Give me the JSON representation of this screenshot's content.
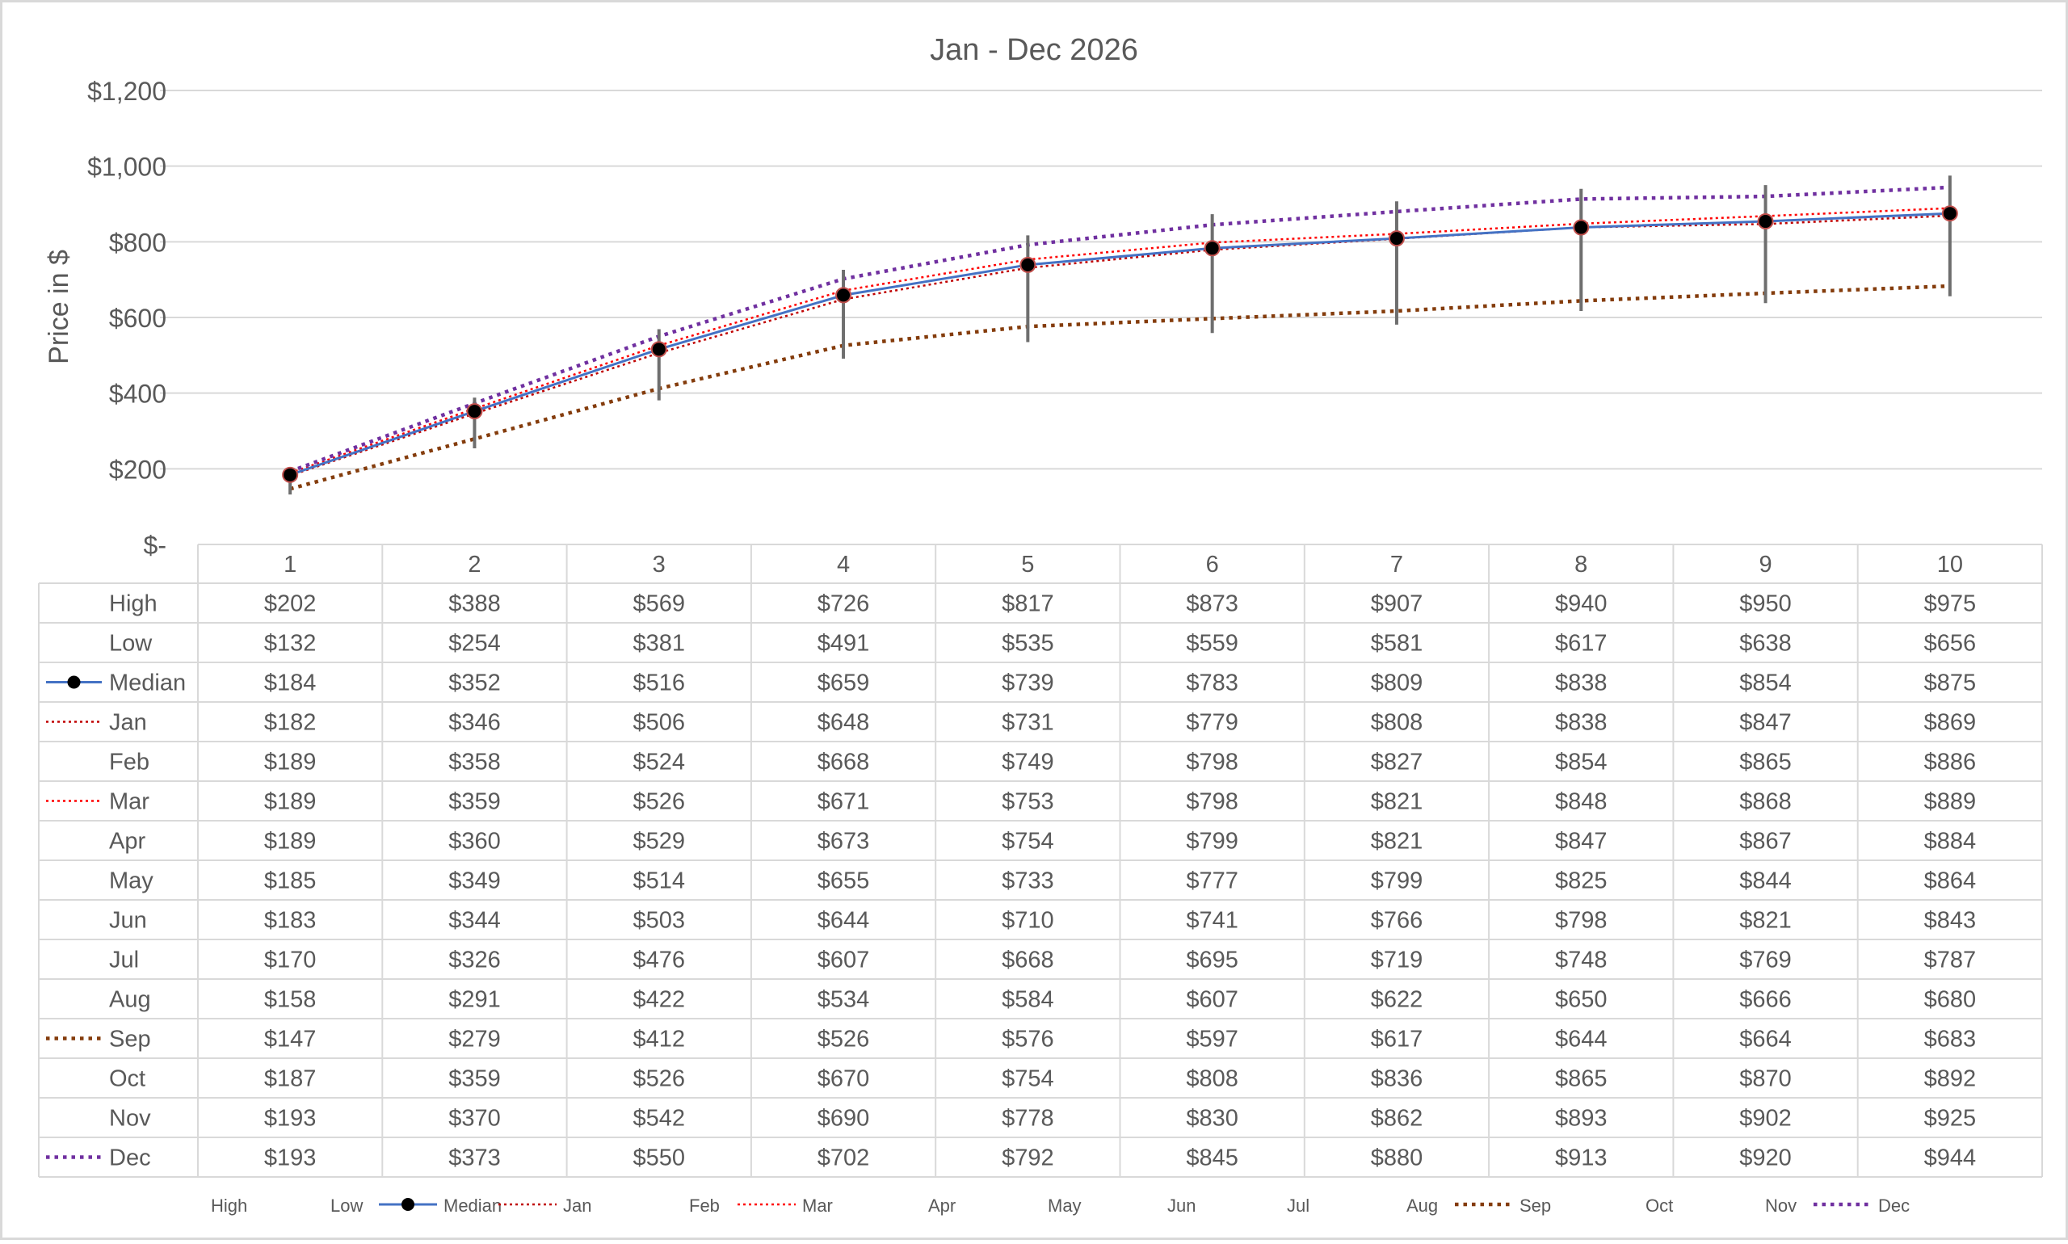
{
  "chart_data": {
    "type": "line",
    "title": "Jan - Dec 2026",
    "ylabel": "Price in $",
    "xlabel": "",
    "ylim": [
      0,
      1200
    ],
    "yticks": [
      0,
      200,
      400,
      600,
      800,
      1000,
      1200
    ],
    "ytick_labels": [
      "$-",
      "$200",
      "$400",
      "$600",
      "$800",
      "$1,000",
      "$1,200"
    ],
    "categories": [
      "1",
      "2",
      "3",
      "4",
      "5",
      "6",
      "7",
      "8",
      "9",
      "10"
    ],
    "grid": "horizontal",
    "legend_position": "bottom",
    "data_table": true,
    "colors": {
      "median": "#4472C4",
      "marker": "#000000",
      "marker_edge": "#C0504D",
      "jan": "#C00000",
      "mar": "#FF0000",
      "sep": "#843C0C",
      "dec": "#7030A0",
      "error_bar": "#6E6E6E",
      "grid": "#D9D9D9",
      "text": "#595959"
    },
    "series": [
      {
        "name": "High",
        "style": "none",
        "values": [
          202,
          388,
          569,
          726,
          817,
          873,
          907,
          940,
          950,
          975
        ],
        "labels": [
          "$202",
          "$388",
          "$569",
          "$726",
          "$817",
          "$873",
          "$907",
          "$940",
          "$950",
          "$975"
        ]
      },
      {
        "name": "Low",
        "style": "none",
        "values": [
          132,
          254,
          381,
          491,
          535,
          559,
          581,
          617,
          638,
          656
        ],
        "labels": [
          "$132",
          "$254",
          "$381",
          "$491",
          "$535",
          "$559",
          "$581",
          "$617",
          "$638",
          "$656"
        ]
      },
      {
        "name": "Median",
        "style": "line-marker",
        "color": "#4472C4",
        "values": [
          184,
          352,
          516,
          659,
          739,
          783,
          809,
          838,
          854,
          875
        ],
        "labels": [
          "$184",
          "$352",
          "$516",
          "$659",
          "$739",
          "$783",
          "$809",
          "$838",
          "$854",
          "$875"
        ]
      },
      {
        "name": "Jan",
        "style": "dotted",
        "color": "#C00000",
        "values": [
          182,
          346,
          506,
          648,
          731,
          779,
          808,
          838,
          847,
          869
        ],
        "labels": [
          "$182",
          "$346",
          "$506",
          "$648",
          "$731",
          "$779",
          "$808",
          "$838",
          "$847",
          "$869"
        ]
      },
      {
        "name": "Feb",
        "style": "none",
        "values": [
          189,
          358,
          524,
          668,
          749,
          798,
          827,
          854,
          865,
          886
        ],
        "labels": [
          "$189",
          "$358",
          "$524",
          "$668",
          "$749",
          "$798",
          "$827",
          "$854",
          "$865",
          "$886"
        ]
      },
      {
        "name": "Mar",
        "style": "dotted",
        "color": "#FF0000",
        "values": [
          189,
          359,
          526,
          671,
          753,
          798,
          821,
          848,
          868,
          889
        ],
        "labels": [
          "$189",
          "$359",
          "$526",
          "$671",
          "$753",
          "$798",
          "$821",
          "$848",
          "$868",
          "$889"
        ]
      },
      {
        "name": "Apr",
        "style": "none",
        "values": [
          189,
          360,
          529,
          673,
          754,
          799,
          821,
          847,
          867,
          884
        ],
        "labels": [
          "$189",
          "$360",
          "$529",
          "$673",
          "$754",
          "$799",
          "$821",
          "$847",
          "$867",
          "$884"
        ]
      },
      {
        "name": "May",
        "style": "none",
        "values": [
          185,
          349,
          514,
          655,
          733,
          777,
          799,
          825,
          844,
          864
        ],
        "labels": [
          "$185",
          "$349",
          "$514",
          "$655",
          "$733",
          "$777",
          "$799",
          "$825",
          "$844",
          "$864"
        ]
      },
      {
        "name": "Jun",
        "style": "none",
        "values": [
          183,
          344,
          503,
          644,
          710,
          741,
          766,
          798,
          821,
          843
        ],
        "labels": [
          "$183",
          "$344",
          "$503",
          "$644",
          "$710",
          "$741",
          "$766",
          "$798",
          "$821",
          "$843"
        ]
      },
      {
        "name": "Jul",
        "style": "none",
        "values": [
          170,
          326,
          476,
          607,
          668,
          695,
          719,
          748,
          769,
          787
        ],
        "labels": [
          "$170",
          "$326",
          "$476",
          "$607",
          "$668",
          "$695",
          "$719",
          "$748",
          "$769",
          "$787"
        ]
      },
      {
        "name": "Aug",
        "style": "none",
        "values": [
          158,
          291,
          422,
          534,
          584,
          607,
          622,
          650,
          666,
          680
        ],
        "labels": [
          "$158",
          "$291",
          "$422",
          "$534",
          "$584",
          "$607",
          "$622",
          "$650",
          "$666",
          "$680"
        ]
      },
      {
        "name": "Sep",
        "style": "dotted-bold",
        "color": "#843C0C",
        "values": [
          147,
          279,
          412,
          526,
          576,
          597,
          617,
          644,
          664,
          683
        ],
        "labels": [
          "$147",
          "$279",
          "$412",
          "$526",
          "$576",
          "$597",
          "$617",
          "$644",
          "$664",
          "$683"
        ]
      },
      {
        "name": "Oct",
        "style": "none",
        "values": [
          187,
          359,
          526,
          670,
          754,
          808,
          836,
          865,
          870,
          892
        ],
        "labels": [
          "$187",
          "$359",
          "$526",
          "$670",
          "$754",
          "$808",
          "$836",
          "$865",
          "$870",
          "$892"
        ]
      },
      {
        "name": "Nov",
        "style": "none",
        "values": [
          193,
          370,
          542,
          690,
          778,
          830,
          862,
          893,
          902,
          925
        ],
        "labels": [
          "$193",
          "$370",
          "$542",
          "$690",
          "$778",
          "$830",
          "$862",
          "$893",
          "$902",
          "$925"
        ]
      },
      {
        "name": "Dec",
        "style": "dotted-bold",
        "color": "#7030A0",
        "values": [
          193,
          373,
          550,
          702,
          792,
          845,
          880,
          913,
          920,
          944
        ],
        "labels": [
          "$193",
          "$373",
          "$550",
          "$702",
          "$792",
          "$845",
          "$880",
          "$913",
          "$920",
          "$944"
        ]
      }
    ],
    "error_bars": {
      "from_series": "Median",
      "upper": "High",
      "lower": "Low"
    }
  }
}
